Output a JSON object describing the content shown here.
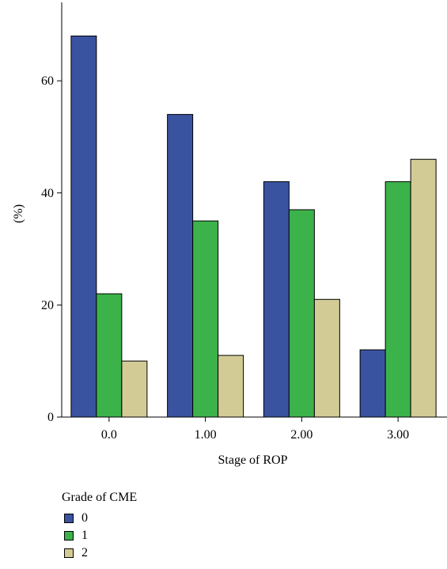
{
  "chart_data": {
    "type": "bar",
    "title": "",
    "xlabel": "Stage of ROP",
    "ylabel": "(%)",
    "categories": [
      "0.0",
      "1.00",
      "2.00",
      "3.00"
    ],
    "series": [
      {
        "name": "0",
        "values": [
          68,
          54,
          42,
          12
        ],
        "color": "#3a53a0"
      },
      {
        "name": "1",
        "values": [
          22,
          35,
          37,
          42
        ],
        "color": "#3cb24a"
      },
      {
        "name": "2",
        "values": [
          10,
          11,
          21,
          46
        ],
        "color": "#d3cb96"
      }
    ],
    "ylim": [
      0,
      74
    ],
    "yticks": [
      0,
      20,
      40,
      60
    ],
    "grid": false,
    "legend": {
      "title": "Grade of CME",
      "position": "bottom-left"
    }
  }
}
